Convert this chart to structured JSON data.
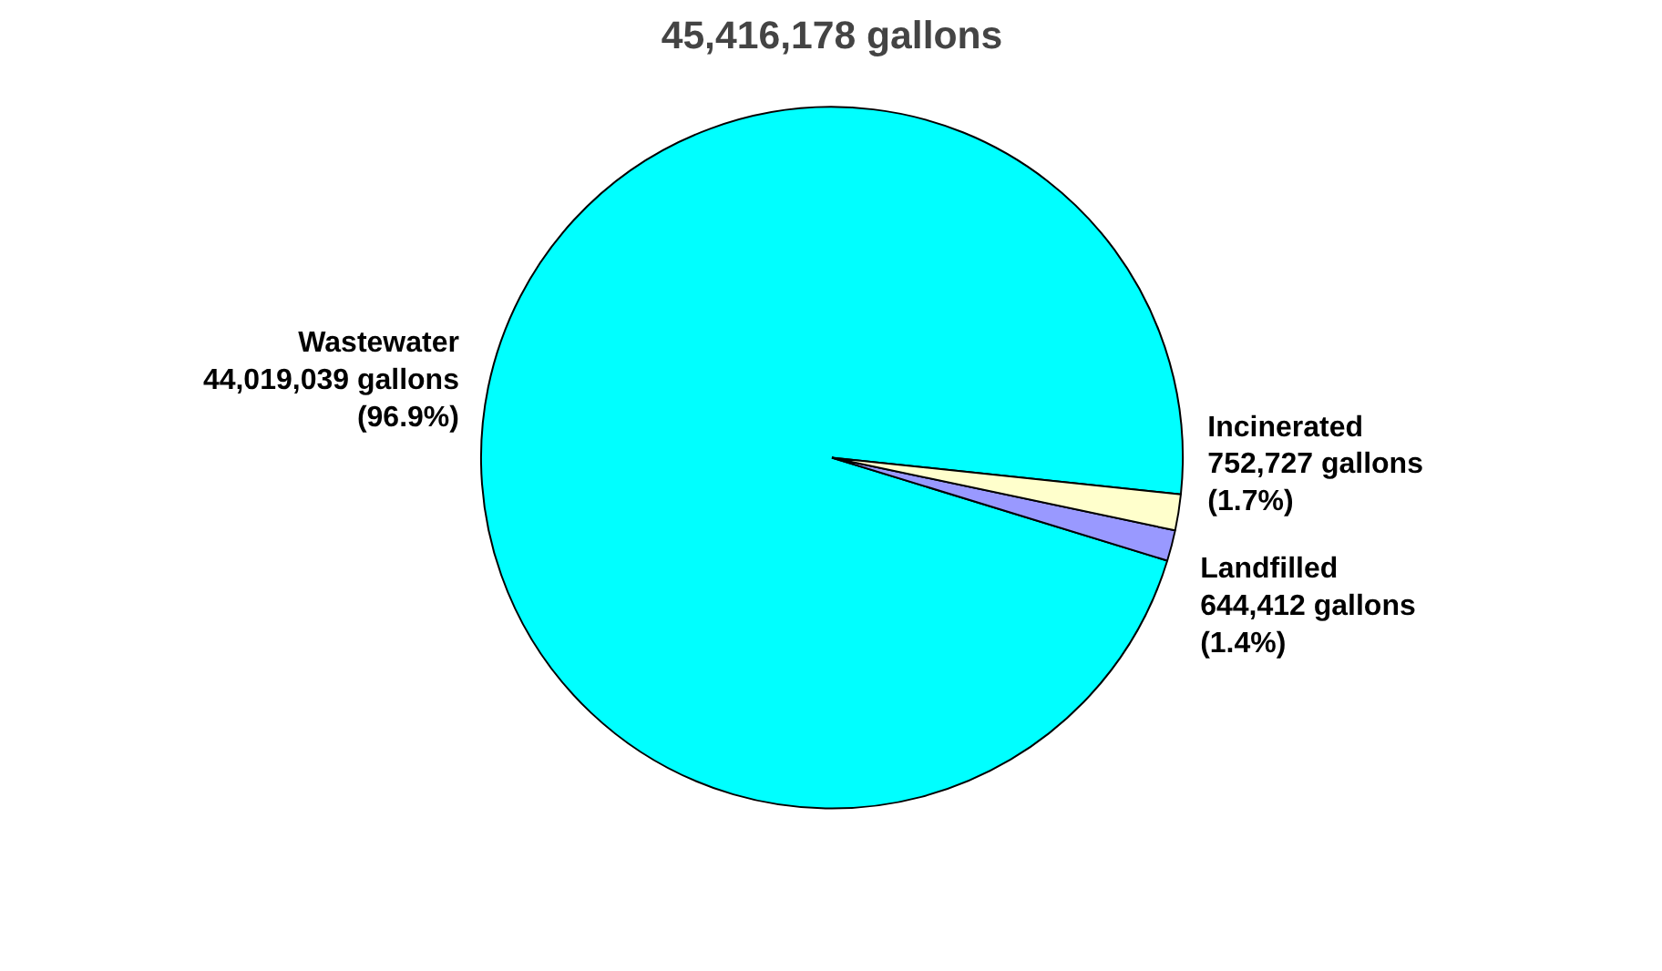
{
  "chart_data": {
    "type": "pie",
    "title": "45,416,178 gallons",
    "categories": [
      "Wastewater",
      "Landfilled",
      "Incinerated"
    ],
    "values": [
      44019039,
      644412,
      752727
    ],
    "colors": [
      "#00ffff",
      "#9999ff",
      "#ffffcc"
    ],
    "value_labels": [
      "44,019,039 gallons\n(96.9%)",
      "644,412 gallons\n(1.4%)",
      "752,727 gallons\n(1.7%)"
    ],
    "legend": false
  }
}
